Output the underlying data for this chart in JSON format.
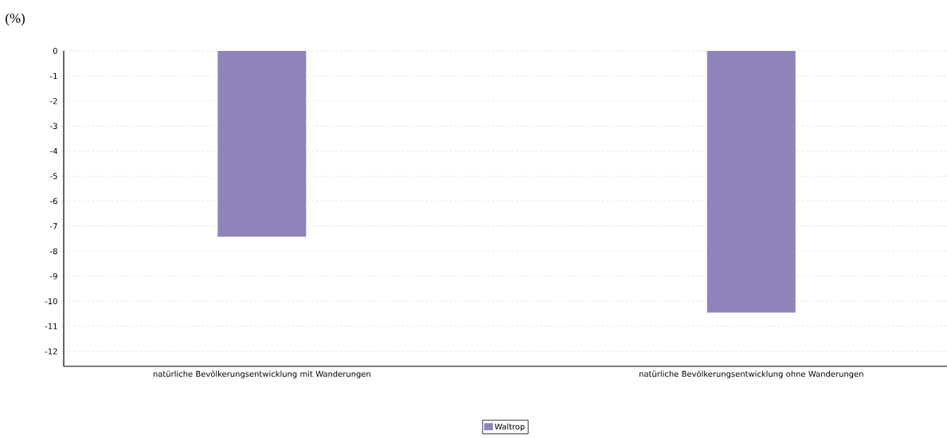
{
  "chart_data": {
    "type": "bar",
    "ylabel": "(%)",
    "categories": [
      "natürliche Bevölkerungsentwicklung mit Wanderungen",
      "natürliche Bevölkerungsentwicklung ohne Wanderungen"
    ],
    "series": [
      {
        "name": "Waltrop",
        "color": "#9083b9",
        "values": [
          -7.42,
          -10.45
        ]
      }
    ],
    "ylim": [
      -12.6,
      0
    ],
    "yticks": [
      0,
      -1,
      -2,
      -3,
      -4,
      -5,
      -6,
      -7,
      -8,
      -9,
      -10,
      -11,
      -12
    ],
    "grid": "y",
    "legend": "bottom"
  }
}
